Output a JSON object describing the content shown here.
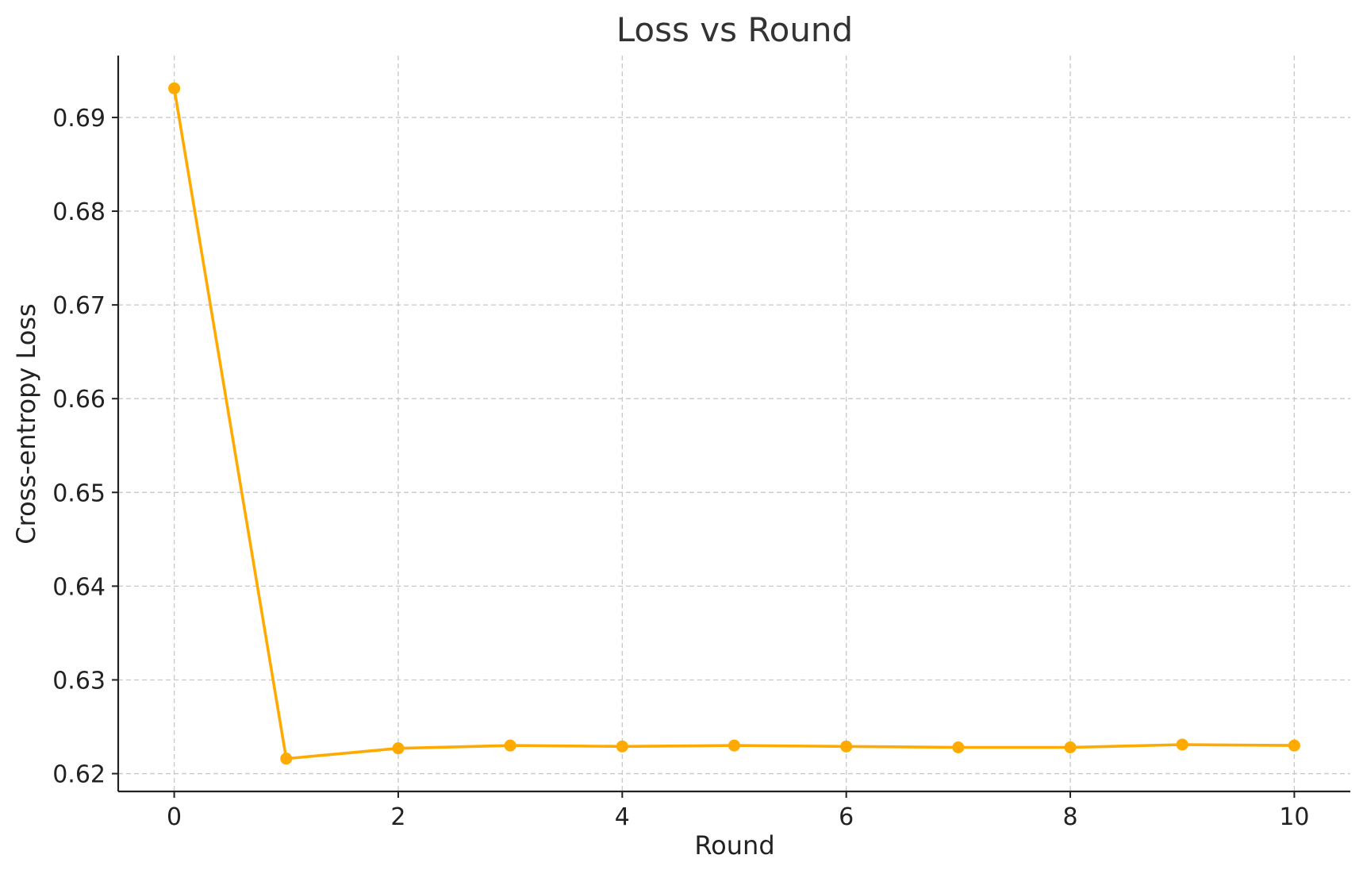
{
  "chart_data": {
    "type": "line",
    "title": "Loss vs Round",
    "xlabel": "Round",
    "ylabel": "Cross-entropy Loss",
    "x": [
      0,
      1,
      2,
      3,
      4,
      5,
      6,
      7,
      8,
      9,
      10
    ],
    "series": [
      {
        "values": [
          0.6931,
          0.6216,
          0.6227,
          0.623,
          0.6229,
          0.623,
          0.6229,
          0.6228,
          0.6228,
          0.6231,
          0.623
        ],
        "color": "#FFAA00"
      }
    ],
    "xlim": [
      -0.5,
      10.5
    ],
    "ylim": [
      0.6181,
      0.6966
    ],
    "xticks": [
      0,
      2,
      4,
      6,
      8,
      10
    ],
    "yticks": [
      0.62,
      0.63,
      0.64,
      0.65,
      0.66,
      0.67,
      0.68,
      0.69
    ],
    "xtick_labels": [
      "0",
      "2",
      "4",
      "6",
      "8",
      "10"
    ],
    "ytick_labels": [
      "0.62",
      "0.63",
      "0.64",
      "0.65",
      "0.66",
      "0.67",
      "0.68",
      "0.69"
    ],
    "grid": true,
    "marker": "circle"
  }
}
